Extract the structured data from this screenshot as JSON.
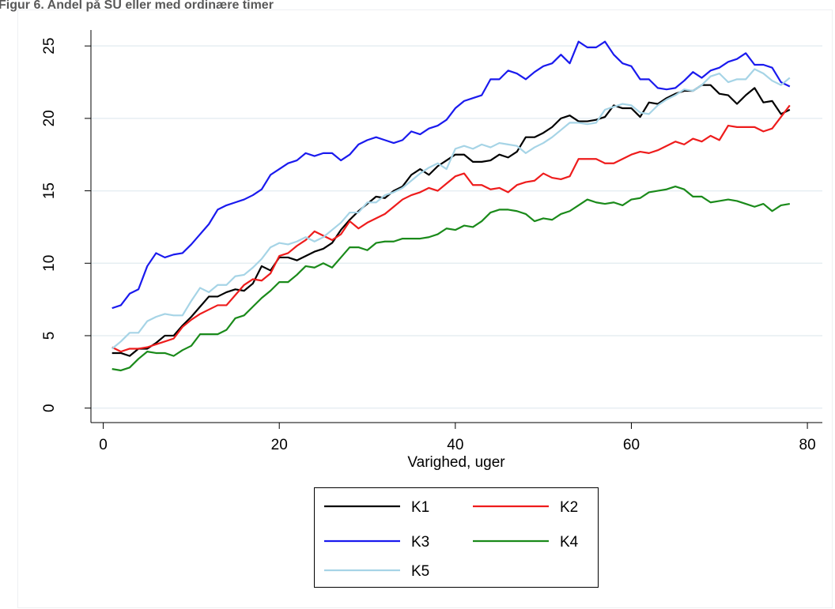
{
  "chart_data": {
    "type": "line",
    "title": "Figur 6. Andel på SU eller med ordinære timer",
    "x_label": "Varighed, uger",
    "x": [
      1,
      2,
      3,
      4,
      5,
      6,
      7,
      8,
      9,
      10,
      11,
      12,
      13,
      14,
      15,
      16,
      17,
      18,
      19,
      20,
      21,
      22,
      23,
      24,
      25,
      26,
      27,
      28,
      29,
      30,
      31,
      32,
      33,
      34,
      35,
      36,
      37,
      38,
      39,
      40,
      41,
      42,
      43,
      44,
      45,
      46,
      47,
      48,
      49,
      50,
      51,
      52,
      53,
      54,
      55,
      56,
      57,
      58,
      59,
      60,
      61,
      62,
      63,
      64,
      65,
      66,
      67,
      68,
      69,
      70,
      71,
      72,
      73,
      74,
      75,
      76,
      77,
      78
    ],
    "series": [
      {
        "name": "K1",
        "color": "#000000",
        "values": [
          3.8,
          3.8,
          3.6,
          4.1,
          4.1,
          4.5,
          5.0,
          5.0,
          5.7,
          6.3,
          7.0,
          7.7,
          7.7,
          8.0,
          8.2,
          8.1,
          8.6,
          9.8,
          9.5,
          10.4,
          10.4,
          10.2,
          10.5,
          10.8,
          11.0,
          11.4,
          12.3,
          13.0,
          13.6,
          14.1,
          14.6,
          14.5,
          15.0,
          15.3,
          16.1,
          16.5,
          16.1,
          16.7,
          17.1,
          17.5,
          17.5,
          17.0,
          17.0,
          17.1,
          17.5,
          17.3,
          17.7,
          18.7,
          18.7,
          19.0,
          19.4,
          20.0,
          20.2,
          19.8,
          19.8,
          19.9,
          20.1,
          20.9,
          20.7,
          20.7,
          20.1,
          21.1,
          21.0,
          21.4,
          21.7,
          21.9,
          21.9,
          22.3,
          22.3,
          21.7,
          21.6,
          21.0,
          21.6,
          22.1,
          21.1,
          21.2,
          20.3,
          20.6
        ]
      },
      {
        "name": "K2",
        "color": "#ee1c1c",
        "values": [
          4.2,
          3.9,
          4.1,
          4.1,
          4.2,
          4.4,
          4.6,
          4.8,
          5.6,
          6.1,
          6.5,
          6.8,
          7.1,
          7.1,
          7.8,
          8.5,
          8.9,
          8.8,
          9.3,
          10.5,
          10.7,
          11.2,
          11.6,
          12.2,
          11.9,
          11.6,
          12.0,
          12.9,
          12.4,
          12.8,
          13.1,
          13.4,
          13.9,
          14.4,
          14.7,
          14.9,
          15.2,
          15.0,
          15.5,
          16.0,
          16.2,
          15.4,
          15.4,
          15.1,
          15.2,
          14.9,
          15.4,
          15.6,
          15.7,
          16.2,
          15.9,
          15.8,
          16.0,
          17.2,
          17.2,
          17.2,
          16.9,
          16.9,
          17.2,
          17.5,
          17.7,
          17.6,
          17.8,
          18.1,
          18.4,
          18.2,
          18.6,
          18.4,
          18.8,
          18.5,
          19.5,
          19.4,
          19.4,
          19.4,
          19.1,
          19.3,
          20.1,
          20.9
        ]
      },
      {
        "name": "K3",
        "color": "#1a1aee",
        "values": [
          6.9,
          7.1,
          7.9,
          8.2,
          9.8,
          10.7,
          10.4,
          10.6,
          10.7,
          11.3,
          12.0,
          12.7,
          13.7,
          14.0,
          14.2,
          14.4,
          14.7,
          15.1,
          16.1,
          16.5,
          16.9,
          17.1,
          17.6,
          17.4,
          17.6,
          17.6,
          17.1,
          17.5,
          18.2,
          18.5,
          18.7,
          18.5,
          18.3,
          18.5,
          19.1,
          18.9,
          19.3,
          19.5,
          19.9,
          20.7,
          21.2,
          21.4,
          21.6,
          22.7,
          22.7,
          23.3,
          23.1,
          22.7,
          23.2,
          23.6,
          23.8,
          24.4,
          23.8,
          25.3,
          24.9,
          24.9,
          25.3,
          24.4,
          23.8,
          23.6,
          22.7,
          22.7,
          22.1,
          22.0,
          22.1,
          22.6,
          23.2,
          22.8,
          23.3,
          23.5,
          23.9,
          24.1,
          24.5,
          23.7,
          23.7,
          23.5,
          22.5,
          22.2
        ]
      },
      {
        "name": "K4",
        "color": "#1a8a1a",
        "values": [
          2.7,
          2.6,
          2.8,
          3.4,
          3.9,
          3.8,
          3.8,
          3.6,
          4.0,
          4.3,
          5.1,
          5.1,
          5.1,
          5.4,
          6.2,
          6.4,
          7.0,
          7.6,
          8.1,
          8.7,
          8.7,
          9.2,
          9.8,
          9.7,
          10.0,
          9.7,
          10.4,
          11.1,
          11.1,
          10.9,
          11.4,
          11.5,
          11.5,
          11.7,
          11.7,
          11.7,
          11.8,
          12.0,
          12.4,
          12.3,
          12.6,
          12.5,
          12.9,
          13.5,
          13.7,
          13.7,
          13.6,
          13.4,
          12.9,
          13.1,
          13.0,
          13.4,
          13.6,
          14.0,
          14.4,
          14.2,
          14.1,
          14.2,
          14.0,
          14.4,
          14.5,
          14.9,
          15.0,
          15.1,
          15.3,
          15.1,
          14.6,
          14.6,
          14.2,
          14.3,
          14.4,
          14.3,
          14.1,
          13.9,
          14.1,
          13.6,
          14.0,
          14.1
        ]
      },
      {
        "name": "K5",
        "color": "#a6d4e6",
        "values": [
          4.1,
          4.6,
          5.2,
          5.2,
          6.0,
          6.3,
          6.5,
          6.4,
          6.4,
          7.4,
          8.3,
          8.0,
          8.5,
          8.5,
          9.1,
          9.2,
          9.7,
          10.3,
          11.1,
          11.4,
          11.3,
          11.5,
          11.8,
          11.5,
          11.8,
          12.3,
          12.8,
          13.5,
          13.5,
          14.2,
          14.2,
          14.7,
          14.9,
          15.2,
          15.7,
          16.2,
          16.6,
          16.9,
          16.5,
          17.9,
          18.1,
          17.9,
          18.2,
          18.0,
          18.3,
          18.2,
          18.1,
          17.6,
          18.0,
          18.3,
          18.7,
          19.2,
          19.7,
          19.7,
          19.6,
          19.7,
          20.6,
          20.8,
          21.0,
          20.9,
          20.4,
          20.3,
          20.9,
          21.3,
          21.6,
          22.0,
          21.9,
          22.3,
          22.9,
          23.1,
          22.5,
          22.7,
          22.7,
          23.4,
          23.1,
          22.6,
          22.3,
          22.8
        ]
      }
    ],
    "xlim": [
      -1.4,
      81.7
    ],
    "ylim": [
      -1,
      26.1
    ],
    "xticks": [
      0,
      20,
      40,
      60,
      80
    ],
    "yticks": [
      0,
      5,
      10,
      15,
      20,
      25
    ],
    "grid": true
  }
}
